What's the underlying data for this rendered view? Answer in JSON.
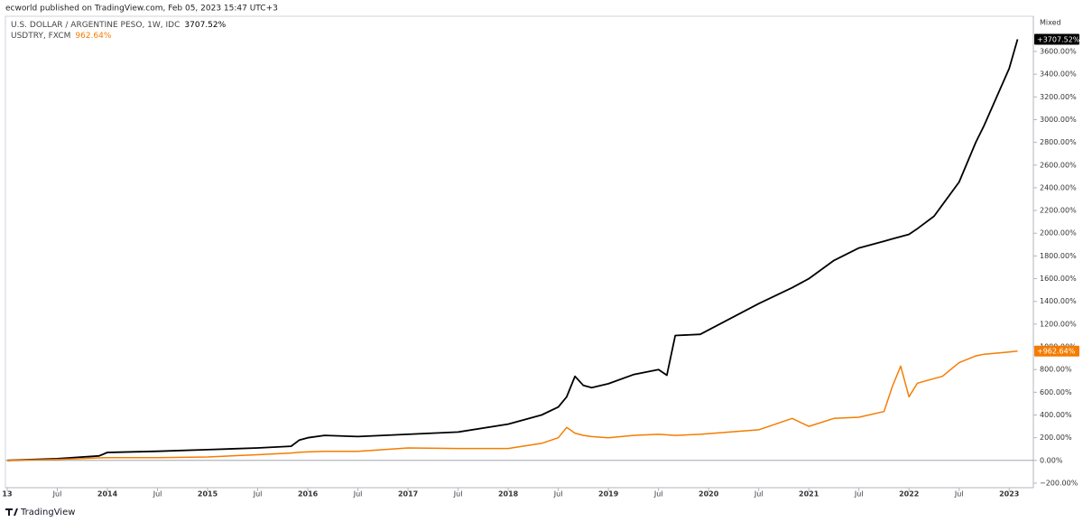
{
  "header": "ecworld published on TradingView.com, Feb 05, 2023 15:47 UTC+3",
  "footer": "TradingView",
  "chart_data": {
    "type": "line",
    "scale_label": "Mixed",
    "x": [
      "2013-01",
      "2013-07",
      "2013-12",
      "2014-01",
      "2014-07",
      "2015-01",
      "2015-07",
      "2015-11",
      "2015-12",
      "2016-01",
      "2016-03",
      "2016-07",
      "2017-01",
      "2017-07",
      "2018-01",
      "2018-05",
      "2018-07",
      "2018-08",
      "2018-09",
      "2018-10",
      "2018-11",
      "2019-01",
      "2019-04",
      "2019-07",
      "2019-08",
      "2019-09",
      "2019-12",
      "2020-07",
      "2020-11",
      "2021-01",
      "2021-04",
      "2021-07",
      "2021-10",
      "2021-11",
      "2021-12",
      "2022-01",
      "2022-02",
      "2022-04",
      "2022-05",
      "2022-07",
      "2022-09",
      "2022-10",
      "2023-01",
      "2023-02"
    ],
    "series": [
      {
        "name": "U.S. DOLLAR / ARGENTINE PESO, 1W, IDC",
        "color": "#000000",
        "values": [
          0,
          15,
          40,
          70,
          80,
          95,
          110,
          125,
          180,
          200,
          220,
          210,
          230,
          250,
          320,
          400,
          470,
          560,
          740,
          660,
          640,
          675,
          755,
          800,
          750,
          1100,
          1110,
          1380,
          1520,
          1600,
          1760,
          1870,
          1930,
          1950,
          1970,
          1990,
          2040,
          2150,
          2250,
          2450,
          2800,
          2950,
          3450,
          3707.52
        ],
        "last_label": "3707.52%",
        "badge_label": "+3707.52%"
      },
      {
        "name": "USDTRY, FXCM",
        "color": "#f57c00",
        "values": [
          0,
          8,
          22,
          25,
          25,
          30,
          50,
          65,
          72,
          75,
          80,
          80,
          110,
          105,
          105,
          150,
          200,
          290,
          240,
          220,
          210,
          200,
          220,
          230,
          225,
          220,
          230,
          270,
          370,
          300,
          370,
          380,
          430,
          650,
          830,
          560,
          680,
          720,
          740,
          860,
          920,
          935,
          955,
          962.64
        ],
        "last_label": "962.64%",
        "badge_label": "+962.64%"
      }
    ],
    "xlim": [
      "2013-01",
      "2023-04"
    ],
    "xticks": [
      {
        "value": "2013-01",
        "label": "13"
      },
      {
        "value": "2013-07",
        "label": "Jul"
      },
      {
        "value": "2014-01",
        "label": "2014"
      },
      {
        "value": "2014-07",
        "label": "Jul"
      },
      {
        "value": "2015-01",
        "label": "2015"
      },
      {
        "value": "2015-07",
        "label": "Jul"
      },
      {
        "value": "2016-01",
        "label": "2016"
      },
      {
        "value": "2016-07",
        "label": "Jul"
      },
      {
        "value": "2017-01",
        "label": "2017"
      },
      {
        "value": "2017-07",
        "label": "Jul"
      },
      {
        "value": "2018-01",
        "label": "2018"
      },
      {
        "value": "2018-07",
        "label": "Jul"
      },
      {
        "value": "2019-01",
        "label": "2019"
      },
      {
        "value": "2019-07",
        "label": "Jul"
      },
      {
        "value": "2020-01",
        "label": "2020"
      },
      {
        "value": "2020-07",
        "label": "Jul"
      },
      {
        "value": "2021-01",
        "label": "2021"
      },
      {
        "value": "2021-07",
        "label": "Jul"
      },
      {
        "value": "2022-01",
        "label": "2022"
      },
      {
        "value": "2022-07",
        "label": "Jul"
      },
      {
        "value": "2023-01",
        "label": "2023"
      }
    ],
    "ylim": [
      -240,
      3910
    ],
    "yticks": [
      {
        "value": -200,
        "label": "−200.00%"
      },
      {
        "value": 0,
        "label": "0.00%"
      },
      {
        "value": 200,
        "label": "200.00%"
      },
      {
        "value": 400,
        "label": "400.00%"
      },
      {
        "value": 600,
        "label": "600.00%"
      },
      {
        "value": 800,
        "label": "800.00%"
      },
      {
        "value": 1000,
        "label": "1000.00%"
      },
      {
        "value": 1200,
        "label": "1200.00%"
      },
      {
        "value": 1400,
        "label": "1400.00%"
      },
      {
        "value": 1600,
        "label": "1600.00%"
      },
      {
        "value": 1800,
        "label": "1800.00%"
      },
      {
        "value": 2000,
        "label": "2000.00%"
      },
      {
        "value": 2200,
        "label": "2200.00%"
      },
      {
        "value": 2400,
        "label": "2400.00%"
      },
      {
        "value": 2600,
        "label": "2600.00%"
      },
      {
        "value": 2800,
        "label": "2800.00%"
      },
      {
        "value": 3000,
        "label": "3000.00%"
      },
      {
        "value": 3200,
        "label": "3200.00%"
      },
      {
        "value": 3400,
        "label": "3400.00%"
      },
      {
        "value": 3600,
        "label": "3600.00%"
      }
    ],
    "grid": false
  }
}
